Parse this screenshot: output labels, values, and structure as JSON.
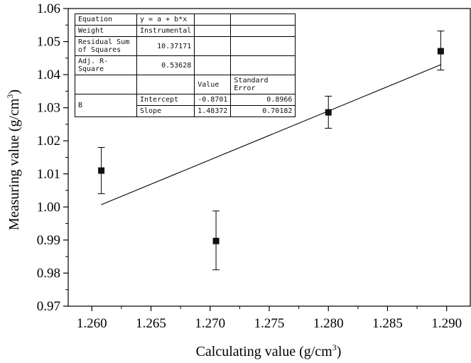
{
  "chart_data": {
    "type": "scatter",
    "xlabel": "Calculating value (g/cm",
    "xlabel_sup": "3",
    "xlabel_tail": ")",
    "ylabel": "Measuring value (g/cm",
    "ylabel_sup": "3",
    "ylabel_tail": ")",
    "xlim": [
      1.258,
      1.292
    ],
    "ylim": [
      0.97,
      1.06
    ],
    "xticks": [
      "1.260",
      "1.265",
      "1.270",
      "1.275",
      "1.280",
      "1.285",
      "1.290"
    ],
    "xtick_values": [
      1.26,
      1.265,
      1.27,
      1.275,
      1.28,
      1.285,
      1.29
    ],
    "yticks": [
      "0.97",
      "0.98",
      "0.99",
      "1.00",
      "1.01",
      "1.02",
      "1.03",
      "1.04",
      "1.05",
      "1.06"
    ],
    "ytick_values": [
      0.97,
      0.98,
      0.99,
      1.0,
      1.01,
      1.02,
      1.03,
      1.04,
      1.05,
      1.06
    ],
    "points": [
      {
        "x": 1.2608,
        "y": 1.011,
        "err_low": 1.004,
        "err_high": 1.018
      },
      {
        "x": 1.2705,
        "y": 0.9897,
        "err_low": 0.981,
        "err_high": 0.9988
      },
      {
        "x": 1.28,
        "y": 1.0286,
        "err_low": 1.0238,
        "err_high": 1.0335
      },
      {
        "x": 1.2895,
        "y": 1.0471,
        "err_low": 1.0414,
        "err_high": 1.0532
      }
    ],
    "fit_line": {
      "x": [
        1.2608,
        1.2895
      ],
      "y": [
        1.0007,
        1.043
      ]
    },
    "grid": false,
    "fit_table": {
      "equation_label": "Equation",
      "equation_value": "y = a + b*x",
      "weight_label": "Weight",
      "weight_value": "Instrumental",
      "rss_label_line1": "Residual Sum",
      "rss_label_line2": "of Squares",
      "rss_value": "10.37171",
      "adjr2_label": "Adj. R-Square",
      "adjr2_value": "0.53628",
      "value_header": "Value",
      "stderr_header": "Standard Error",
      "group_label": "B",
      "intercept_label": "Intercept",
      "intercept_value": "-0.8701",
      "intercept_error": "0.8966",
      "slope_label": "Slope",
      "slope_value": "1.48372",
      "slope_error": "0.70182"
    }
  }
}
